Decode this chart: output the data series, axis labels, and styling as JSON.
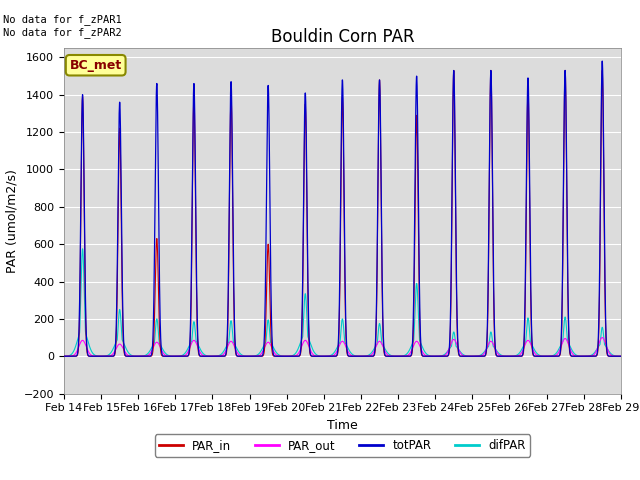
{
  "title": "Bouldin Corn PAR",
  "xlabel": "Time",
  "ylabel": "PAR (umol/m2/s)",
  "ylim": [
    -200,
    1650
  ],
  "xlim": [
    0,
    15
  ],
  "x_tick_labels": [
    "Feb 14",
    "Feb 15",
    "Feb 16",
    "Feb 17",
    "Feb 18",
    "Feb 19",
    "Feb 20",
    "Feb 21",
    "Feb 22",
    "Feb 23",
    "Feb 24",
    "Feb 25",
    "Feb 26",
    "Feb 27",
    "Feb 28",
    "Feb 29"
  ],
  "legend_labels": [
    "PAR_in",
    "PAR_out",
    "totPAR",
    "difPAR"
  ],
  "colors": {
    "PAR_in": "#cc0000",
    "PAR_out": "#ff00ff",
    "totPAR": "#0000cc",
    "difPAR": "#00cccc"
  },
  "bg_color": "#dcdcdc",
  "annotation_text": "No data for f_zPAR1\nNo data for f_zPAR2",
  "legend_box_label": "BC_met",
  "legend_box_color": "#ffff99",
  "legend_box_edge_color": "#888800",
  "title_fontsize": 12,
  "axis_label_fontsize": 9,
  "tick_fontsize": 8,
  "tot_peaks": [
    1400,
    1360,
    1460,
    1460,
    1470,
    1450,
    1410,
    1480,
    1480,
    1500,
    1530,
    1530,
    1490,
    1530,
    1580
  ],
  "par_in_peaks": [
    1390,
    1220,
    630,
    1390,
    1390,
    600,
    1350,
    1390,
    1480,
    1290,
    1530,
    1530,
    1420,
    1530,
    1530
  ],
  "par_out_peaks": [
    85,
    65,
    75,
    85,
    80,
    75,
    85,
    80,
    80,
    80,
    90,
    80,
    85,
    95,
    100
  ],
  "dif_peaks": [
    575,
    250,
    200,
    185,
    190,
    195,
    335,
    200,
    175,
    390,
    130,
    130,
    205,
    210,
    155
  ],
  "dif_plateau": [
    150,
    100,
    80,
    90,
    85,
    85,
    120,
    85,
    75,
    100,
    60,
    60,
    85,
    90,
    70
  ]
}
